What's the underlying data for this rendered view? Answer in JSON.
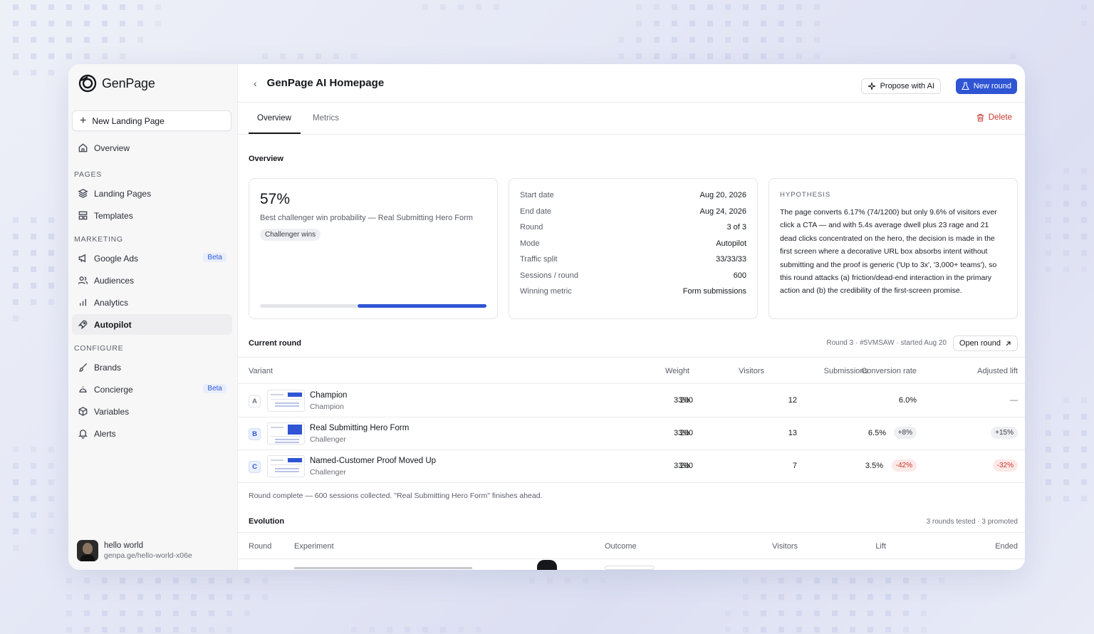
{
  "brand": {
    "name": "GenPage"
  },
  "sidebar": {
    "new_button": "New Landing Page",
    "overview": "Overview",
    "sections": {
      "pages": "PAGES",
      "marketing": "MARKETING",
      "configure": "CONFIGURE"
    },
    "items": [
      {
        "label": "Landing Pages",
        "icon": "layers-icon"
      },
      {
        "label": "Templates",
        "icon": "template-icon"
      },
      {
        "label": "Google Ads",
        "icon": "megaphone-icon",
        "badge": "Beta"
      },
      {
        "label": "Audiences",
        "icon": "users-icon"
      },
      {
        "label": "Analytics",
        "icon": "bar-chart-icon"
      },
      {
        "label": "Autopilot",
        "icon": "rocket-icon",
        "active": true
      },
      {
        "label": "Brands",
        "icon": "brush-icon"
      },
      {
        "label": "Concierge",
        "icon": "concierge-bell-icon",
        "badge": "Beta"
      },
      {
        "label": "Variables",
        "icon": "cube-icon"
      },
      {
        "label": "Alerts",
        "icon": "bell-icon"
      }
    ],
    "user": {
      "name": "hello world",
      "url": "genpa.ge/hello-world-x06e"
    }
  },
  "header": {
    "title": "GenPage AI Homepage",
    "propose_button": "Propose with AI",
    "new_round_button": "New round"
  },
  "tabs": [
    {
      "label": "Overview",
      "active": true
    },
    {
      "label": "Metrics"
    }
  ],
  "delete_button": "Delete",
  "overview": {
    "heading": "Overview",
    "win_prob": {
      "value": "57%",
      "fraction": 0.57,
      "caption": "Best challenger win probability — Real Submitting Hero Form",
      "chip": "Challenger wins"
    },
    "details": [
      {
        "k": "Start date",
        "v": "Aug 20, 2026"
      },
      {
        "k": "End date",
        "v": "Aug 24, 2026"
      },
      {
        "k": "Round",
        "v": "3 of 3"
      },
      {
        "k": "Mode",
        "v": "Autopilot"
      },
      {
        "k": "Traffic split",
        "v": "33/33/33"
      },
      {
        "k": "Sessions / round",
        "v": "600"
      },
      {
        "k": "Winning metric",
        "v": "Form submissions"
      }
    ],
    "hypothesis_label": "HYPOTHESIS",
    "hypothesis": "The page converts 6.17% (74/1200) but only 9.6% of visitors ever click a CTA — and with 5.4s average dwell plus 23 rage and 21 dead clicks concentrated on the hero, the decision is made in the first screen where a decorative URL box absorbs intent without submitting and the proof is generic ('Up to 3x', '3,000+ teams'), so this round attacks (a) friction/dead-end interaction in the primary action and (b) the credibility of the first-screen promise."
  },
  "current_round": {
    "heading": "Current round",
    "meta": "Round 3 · #5VMSAW · started Aug 20",
    "open_button": "Open round",
    "columns": [
      "Variant",
      "Weight",
      "Visitors",
      "Submissions",
      "Conversion rate",
      "Adjusted lift"
    ],
    "rows": [
      {
        "letter": "A",
        "name": "Champion",
        "role": "Champion",
        "weight": "33%",
        "visitors": "200",
        "submissions": "12",
        "rate": "6.0%",
        "rate_delta": "",
        "lift": "—"
      },
      {
        "letter": "B",
        "name": "Real Submitting Hero Form",
        "role": "Challenger",
        "weight": "33%",
        "visitors": "200",
        "submissions": "13",
        "rate": "6.5%",
        "rate_delta": "+8%",
        "lift": "+15%"
      },
      {
        "letter": "C",
        "name": "Named-Customer Proof Moved Up",
        "role": "Challenger",
        "weight": "33%",
        "visitors": "200",
        "submissions": "7",
        "rate": "3.5%",
        "rate_delta": "-42%",
        "lift": "-32%"
      }
    ],
    "note": "Round complete — 600 sessions collected. \"Real Submitting Hero Form\" finishes ahead."
  },
  "evolution": {
    "heading": "Evolution",
    "meta": "3 rounds tested · 3 promoted",
    "columns": [
      "Round",
      "Experiment",
      "Outcome",
      "Visitors",
      "Lift",
      "Ended"
    ]
  },
  "colors": {
    "accent": "#2f55d4",
    "danger": "#c9372c",
    "sidebar_bg": "#f7f7f8"
  }
}
